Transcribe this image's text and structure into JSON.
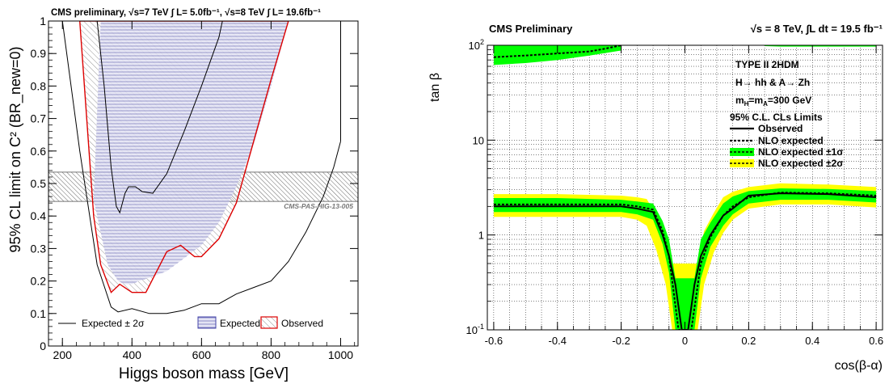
{
  "chart_data": [
    {
      "type": "line",
      "title": "CMS preliminary, √s=7 TeV ∫ L=  5.0fb⁻¹, √s=8 TeV ∫ L=  19.6fb⁻¹",
      "xlabel": "Higgs boson mass [GeV]",
      "ylabel": "95% CL limit on C² (BR_new=0)",
      "xlim": [
        160,
        1050
      ],
      "ylim": [
        0,
        1
      ],
      "x_ticks": [
        "200",
        "400",
        "600",
        "800",
        "1000"
      ],
      "y_ticks": [
        "0.1",
        "0.2",
        "0.3",
        "0.4",
        "0.5",
        "0.6",
        "0.7",
        "0.8",
        "0.9",
        "1"
      ],
      "annotation": "CMS-PAS-HIG-13-005",
      "excluded_band": {
        "ymin": 0.445,
        "ymax": 0.535
      },
      "legend": [
        "Expected ± 2σ",
        "Expected",
        "Observed"
      ],
      "legend_placement": "bottom",
      "series": [
        {
          "name": "Expected",
          "x": [
            290,
            330,
            360,
            380,
            400,
            420,
            450,
            500,
            550,
            600,
            650,
            700,
            750,
            800,
            850,
            850,
            800,
            750,
            700,
            650,
            600,
            550,
            500,
            450,
            400,
            360,
            330,
            310,
            290
          ],
          "y": [
            0.45,
            0.25,
            0.2,
            0.19,
            0.19,
            0.2,
            0.21,
            0.23,
            0.27,
            0.31,
            0.38,
            0.49,
            0.62,
            0.8,
            1.0,
            1.0,
            1.0,
            1.0,
            1.0,
            1.0,
            1.0,
            1.0,
            1.0,
            1.0,
            1.0,
            1.0,
            1.0,
            1.0,
            0.45
          ]
        },
        {
          "name": "Observed",
          "x": [
            250,
            290,
            310,
            340,
            365,
            400,
            440,
            500,
            540,
            580,
            600,
            650,
            700,
            750,
            800,
            850,
            850,
            750,
            700,
            650,
            600,
            550,
            500,
            450,
            400,
            360,
            330,
            250
          ],
          "y": [
            1.0,
            0.4,
            0.25,
            0.165,
            0.19,
            0.165,
            0.165,
            0.29,
            0.31,
            0.275,
            0.275,
            0.33,
            0.44,
            0.63,
            0.82,
            1.0,
            1.0,
            1.0,
            1.0,
            1.0,
            1.0,
            1.0,
            1.0,
            1.0,
            1.0,
            1.0,
            1.0,
            1.0
          ]
        },
        {
          "name": "Expected ± 2σ",
          "lower": {
            "x": [
              200,
              250,
              300,
              340,
              360,
              400,
              450,
              500,
              550,
              600,
              650,
              700,
              750,
              800,
              850,
              900,
              950,
              980,
              1000
            ],
            "y": [
              1.0,
              0.6,
              0.25,
              0.12,
              0.105,
              0.115,
              0.1,
              0.1,
              0.11,
              0.13,
              0.13,
              0.16,
              0.18,
              0.2,
              0.26,
              0.35,
              0.46,
              0.55,
              0.63
            ]
          },
          "upper": {
            "x": [
              300,
              320,
              340,
              355,
              365,
              380,
              390,
              410,
              430,
              460,
              500,
              550,
              600,
              650,
              660
            ],
            "y": [
              1.0,
              0.8,
              0.55,
              0.43,
              0.41,
              0.47,
              0.49,
              0.49,
              0.475,
              0.47,
              0.53,
              0.66,
              0.8,
              0.95,
              1.0
            ]
          },
          "right_edge": {
            "x": [
              1000,
              1000,
              1010
            ],
            "y": [
              0.63,
              1.0,
              1.0
            ]
          }
        }
      ]
    },
    {
      "type": "line",
      "title_left": "CMS Preliminary",
      "title_right": "√s = 8 TeV, ∫L dt = 19.5 fb⁻¹",
      "xlabel": "cos(β-α)",
      "ylabel": "tan β",
      "xlim": [
        -0.62,
        0.62
      ],
      "ylim": [
        0.1,
        100
      ],
      "y_scale": "log",
      "grid": true,
      "x_ticks": [
        "-0.6",
        "-0.4",
        "-0.2",
        "0",
        "0.2",
        "0.4",
        "0.6"
      ],
      "y_ticks": [
        {
          "base": "10",
          "exp": "-1"
        },
        {
          "base": "1",
          "exp": ""
        },
        {
          "base": "10",
          "exp": ""
        },
        {
          "base": "10",
          "exp": "2"
        }
      ],
      "annotation": {
        "line1": "TYPE II 2HDM",
        "line2_a": "H",
        "line2_b": "→ hh & A",
        "line2_c": "→ Zh",
        "line3_m1": "m",
        "line3_s1": "H",
        "line3_eq": "=m",
        "line3_s2": "A",
        "line3_tail": "=300 GeV"
      },
      "legend_title": "95% C.L. CLs Limits",
      "legend": [
        "Observed",
        "NLO expected",
        "NLO expected ±1σ",
        "NLO expected ±2σ"
      ],
      "legend_placement": "top-right",
      "colors": {
        "one_sigma": "#00ff00",
        "two_sigma": "#ffff00"
      },
      "series": [
        {
          "name": "Observed",
          "x": [
            -0.6,
            -0.2,
            -0.15,
            -0.1,
            -0.07,
            -0.05,
            -0.03,
            -0.01,
            0.01,
            0.03,
            0.05,
            0.08,
            0.12,
            0.15,
            0.2,
            0.3,
            0.45,
            0.6
          ],
          "y": [
            2.0,
            2.0,
            1.9,
            1.75,
            1.0,
            0.6,
            0.3,
            0.1,
            0.1,
            0.3,
            0.6,
            1.0,
            1.6,
            1.9,
            2.6,
            2.75,
            2.7,
            2.5
          ]
        },
        {
          "name": "NLO expected",
          "x": [
            -0.6,
            -0.2,
            -0.15,
            -0.1,
            -0.07,
            -0.05,
            -0.02,
            0.02,
            0.05,
            0.08,
            0.12,
            0.15,
            0.2,
            0.3,
            0.45,
            0.6
          ],
          "y": [
            2.1,
            2.1,
            2.0,
            1.85,
            1.1,
            0.6,
            0.1,
            0.1,
            0.5,
            0.95,
            1.6,
            2.0,
            2.5,
            2.8,
            2.75,
            2.6
          ],
          "top_x": [
            -0.6,
            -0.5,
            -0.4,
            -0.3,
            -0.25,
            -0.2
          ],
          "top_y": [
            75,
            78,
            82,
            86,
            92,
            100
          ]
        },
        {
          "name": "NLO expected ±1σ",
          "x": [
            -0.6,
            -0.4,
            -0.2,
            -0.15,
            -0.1,
            -0.07,
            -0.05,
            -0.03,
            0.03,
            0.05,
            0.08,
            0.12,
            0.15,
            0.2,
            0.3,
            0.45,
            0.6
          ],
          "lower": [
            1.75,
            1.75,
            1.75,
            1.65,
            1.45,
            0.8,
            0.4,
            0.1,
            0.1,
            0.35,
            0.75,
            1.25,
            1.65,
            2.15,
            2.35,
            2.35,
            2.2
          ],
          "upper": [
            2.45,
            2.45,
            2.35,
            2.25,
            2.15,
            1.4,
            0.9,
            0.35,
            0.35,
            0.9,
            1.35,
            2.15,
            2.55,
            2.9,
            3.1,
            3.05,
            2.9
          ],
          "top_x": [
            -0.6,
            -0.5,
            -0.4,
            -0.3,
            -0.2,
            -0.2
          ],
          "top_lower": [
            62,
            65,
            70,
            78,
            88,
            100
          ],
          "top_upper": [
            100,
            100,
            100,
            100,
            100,
            100
          ],
          "top_right_x": [
            0.25,
            0.3,
            0.4,
            0.5,
            0.6
          ],
          "top_right_lower": [
            98,
            97,
            97,
            97,
            97
          ]
        },
        {
          "name": "NLO expected ±2σ",
          "x": [
            -0.6,
            -0.4,
            -0.2,
            -0.15,
            -0.12,
            -0.09,
            -0.06,
            -0.04,
            -0.04,
            0.04,
            0.04,
            0.06,
            0.09,
            0.12,
            0.15,
            0.2,
            0.3,
            0.45,
            0.6
          ],
          "lower": [
            1.55,
            1.55,
            1.55,
            1.45,
            1.25,
            0.7,
            0.3,
            0.1,
            0.1,
            0.1,
            0.1,
            0.3,
            0.65,
            1.05,
            1.45,
            1.9,
            2.1,
            2.1,
            1.95
          ],
          "upper": [
            2.7,
            2.7,
            2.6,
            2.5,
            2.4,
            1.6,
            1.05,
            0.5,
            0.5,
            0.5,
            0.5,
            1.1,
            1.7,
            2.5,
            2.85,
            3.2,
            3.5,
            3.4,
            3.2
          ]
        }
      ]
    }
  ]
}
